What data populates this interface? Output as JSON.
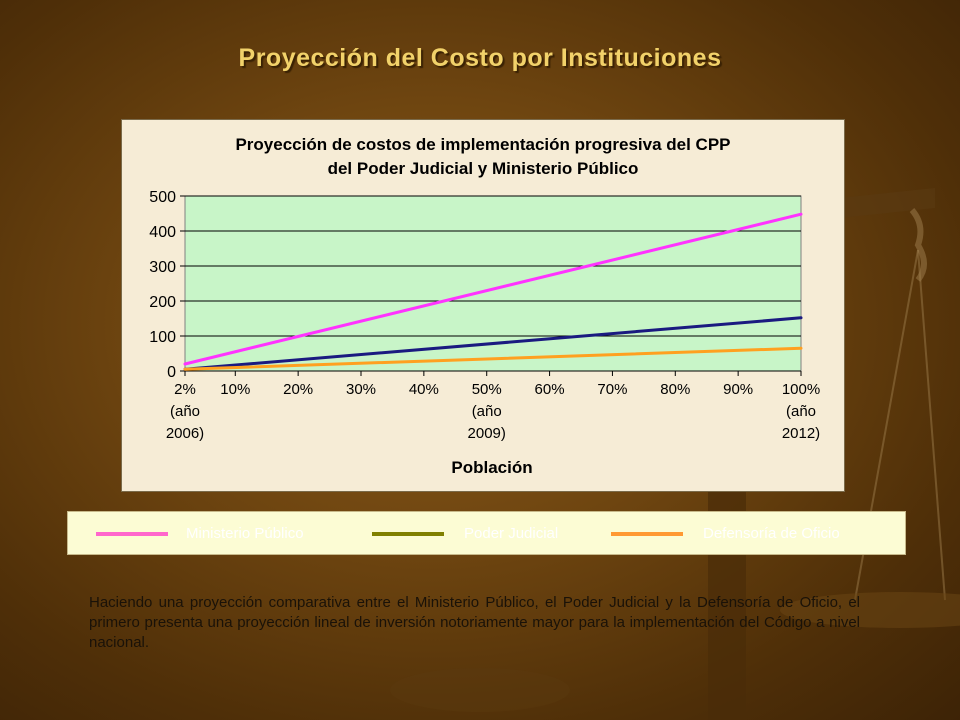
{
  "slide": {
    "title": "Proyección del Costo por Instituciones",
    "description": "Haciendo una proyección comparativa entre el Ministerio Público, el Poder Judicial y la Defensoría de Oficio, el primero presenta una proyección lineal de inversión notoriamente mayor para la implementación del Código a nivel nacional."
  },
  "colors": {
    "plot_bg": "#c8f5c8",
    "frame_bg": "#f6ecd6",
    "ministerio_publico": "#ff33ff",
    "poder_judicial": "#1a1a80",
    "defensoria_de_oficio": "#ffa020"
  },
  "legend": [
    {
      "label": "Ministerio Público",
      "color": "#ff66cc"
    },
    {
      "label": "Poder Judicial",
      "color": "#808000"
    },
    {
      "label": "Defensoría de Oficio",
      "color": "#ff9933"
    }
  ],
  "chart_data": {
    "type": "line",
    "title_line1": "Proyección de costos de implementación progresiva del CPP",
    "title_line2": "del Poder Judicial y Ministerio Público",
    "xlabel": "Población",
    "ylabel": "",
    "ylim": [
      0,
      500
    ],
    "yticks": [
      "0",
      "100",
      "200",
      "300",
      "400",
      "500"
    ],
    "ytick_values": [
      0,
      100,
      200,
      300,
      400,
      500
    ],
    "x": [
      "2%",
      "10%",
      "20%",
      "30%",
      "40%",
      "50%",
      "60%",
      "70%",
      "80%",
      "90%",
      "100%"
    ],
    "x_values": [
      2,
      10,
      20,
      30,
      40,
      50,
      60,
      70,
      80,
      90,
      100
    ],
    "x_sublabels": {
      "0": [
        "(año",
        "2006)"
      ],
      "5": [
        "(año",
        "2009)"
      ],
      "10": [
        "(año",
        "2012)"
      ]
    },
    "grid": "horizontal",
    "series": [
      {
        "name": "Ministerio Público",
        "color": "#ff33ff",
        "x": [
          2,
          100
        ],
        "y": [
          20,
          448
        ]
      },
      {
        "name": "Poder Judicial",
        "color": "#1a1a80",
        "x": [
          2,
          100
        ],
        "y": [
          5,
          152
        ]
      },
      {
        "name": "Defensoría de Oficio",
        "color": "#ffa020",
        "x": [
          2,
          100
        ],
        "y": [
          5,
          65
        ]
      }
    ]
  }
}
